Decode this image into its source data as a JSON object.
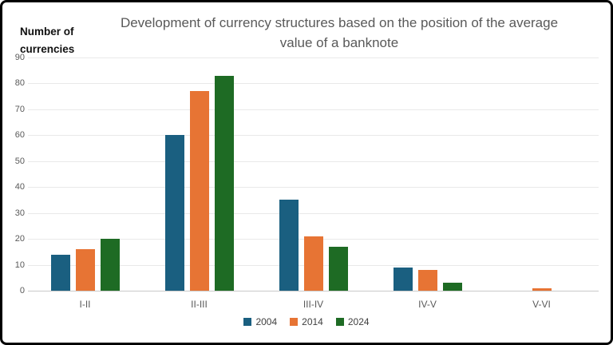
{
  "frame": {
    "background": "#ffffff",
    "border_color": "#000000"
  },
  "header": {
    "title": "Development of currency structures based on the position of the average value of a banknote",
    "title_lines": [
      "Development of currency structures based on the position of the average",
      "value of a banknote"
    ],
    "title_color": "#595959"
  },
  "y_axis_title": {
    "text": "Number of currencies",
    "lines": [
      "Number of",
      "currencies"
    ]
  },
  "chart_data": {
    "type": "bar",
    "title": "Development of currency structures based on the position of the average value of a banknote",
    "categories": [
      "I-II",
      "II-III",
      "III-IV",
      "IV-V",
      "V-VI"
    ],
    "series": [
      {
        "name": "2004",
        "color": "#1A5F80",
        "values": [
          14,
          60,
          35,
          9,
          0
        ]
      },
      {
        "name": "2014",
        "color": "#E77434",
        "values": [
          16,
          77,
          21,
          8,
          1
        ]
      },
      {
        "name": "2024",
        "color": "#1E6B24",
        "values": [
          20,
          83,
          17,
          3,
          0
        ]
      }
    ],
    "xlabel": "",
    "ylabel": "Number of currencies",
    "ylim": [
      0,
      90
    ],
    "ytick_step": 10,
    "yticks": [
      0,
      10,
      20,
      30,
      40,
      50,
      60,
      70,
      80,
      90
    ],
    "grid": true,
    "gridline_color": "#e9e9e9",
    "axis_line_color": "#c9c9c9",
    "text_color": "#595959",
    "legend_position": "bottom",
    "legend_labels": [
      "2004",
      "2014",
      "2024"
    ]
  }
}
